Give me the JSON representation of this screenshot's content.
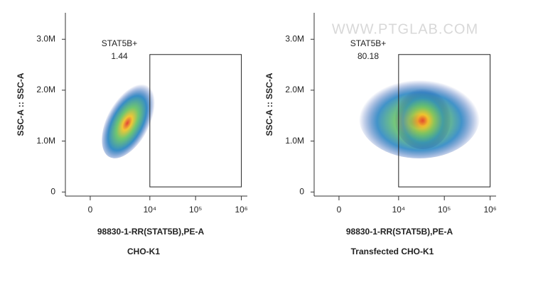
{
  "watermark": "WWW.PTGLAB.COM",
  "chart_data": [
    {
      "type": "scatter",
      "title": "CHO-K1",
      "xlabel": "98830-1-RR(STAT5B),PE-A",
      "ylabel": "SSC-A :: SSC-A",
      "xlim": [
        -1600,
        1350000
      ],
      "ylim": [
        -80000,
        3520000
      ],
      "xticks": [
        0,
        {
          "value": 10000,
          "label": "10⁴"
        },
        {
          "value": 100000,
          "label": "10⁵"
        },
        {
          "value": 1000000,
          "label": "10⁶"
        }
      ],
      "yticks": [
        0,
        {
          "value": 1000000,
          "label": "1.0M"
        },
        {
          "value": 2000000,
          "label": "2.0M"
        },
        {
          "value": 3000000,
          "label": "3.0M"
        }
      ],
      "gate": {
        "name": "STAT5B+",
        "value": 1.44,
        "x": [
          10000,
          1000000
        ],
        "y": [
          100000,
          2700000
        ]
      }
    },
    {
      "type": "scatter",
      "title": "Transfected CHO-K1",
      "xlabel": "98830-1-RR(STAT5B),PE-A",
      "ylabel": "SSC-A :: SSC-A",
      "xlim": [
        -1600,
        1350000
      ],
      "ylim": [
        -80000,
        3520000
      ],
      "xticks": [
        0,
        {
          "value": 10000,
          "label": "10⁴"
        },
        {
          "value": 100000,
          "label": "10⁵"
        },
        {
          "value": 1000000,
          "label": "10⁶"
        }
      ],
      "yticks": [
        0,
        {
          "value": 1000000,
          "label": "1.0M"
        },
        {
          "value": 2000000,
          "label": "2.0M"
        },
        {
          "value": 3000000,
          "label": "3.0M"
        }
      ],
      "gate": {
        "name": "STAT5B+",
        "value": 80.18,
        "x": [
          10000,
          1000000
        ],
        "y": [
          100000,
          2700000
        ]
      }
    }
  ]
}
